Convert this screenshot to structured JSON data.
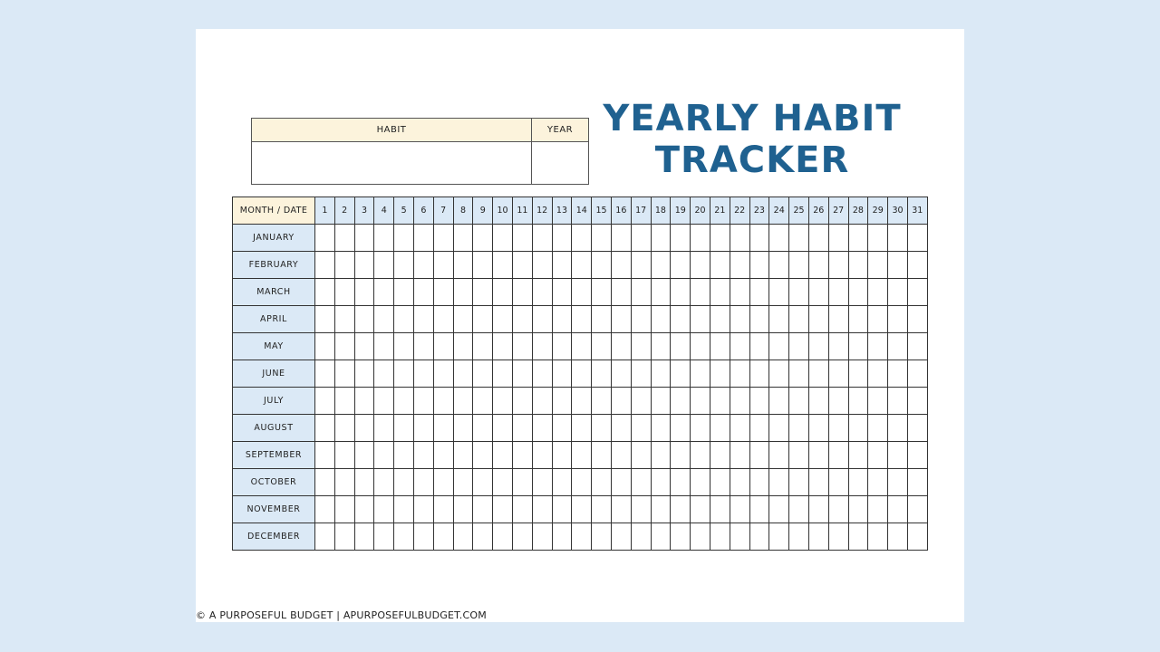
{
  "title": {
    "line1": "YEARLY HABIT",
    "line2": "TRACKER"
  },
  "habit_box": {
    "habit_label": "HABIT",
    "year_label": "YEAR",
    "habit_value": "",
    "year_value": ""
  },
  "tracker": {
    "corner_label": "MONTH / DATE",
    "days": [
      "1",
      "2",
      "3",
      "4",
      "5",
      "6",
      "7",
      "8",
      "9",
      "10",
      "11",
      "12",
      "13",
      "14",
      "15",
      "16",
      "17",
      "18",
      "19",
      "20",
      "21",
      "22",
      "23",
      "24",
      "25",
      "26",
      "27",
      "28",
      "29",
      "30",
      "31"
    ],
    "months": [
      "JANUARY",
      "FEBRUARY",
      "MARCH",
      "APRIL",
      "MAY",
      "JUNE",
      "JULY",
      "AUGUST",
      "SEPTEMBER",
      "OCTOBER",
      "NOVEMBER",
      "DECEMBER"
    ]
  },
  "footer": "© A PURPOSEFUL BUDGET | APURPOSEFULBUDGET.COM",
  "colors": {
    "background": "#dbe9f6",
    "title": "#1f6190",
    "header_cream": "#fcf3dc",
    "header_blue": "#dbe9f6"
  }
}
